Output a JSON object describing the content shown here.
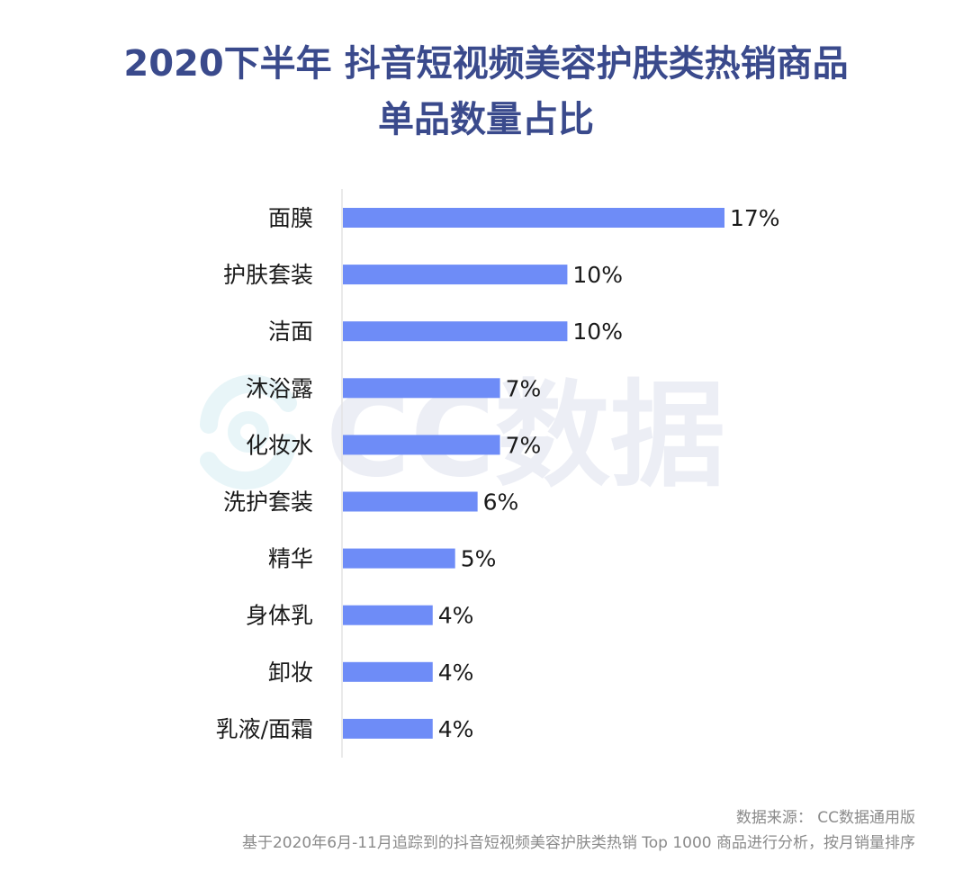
{
  "title": {
    "line1": "2020下半年 抖音短视频美容护肤类热销商品",
    "line2": "单品数量占比"
  },
  "watermark": {
    "text": "CC数据",
    "icon": "cc-logo-icon"
  },
  "footer": {
    "source": "数据来源： CC数据通用版",
    "note": "基于2020年6月-11月追踪到的抖音短视频美容护肤类热销 Top 1000 商品进行分析，按月销量排序"
  },
  "colors": {
    "bar": "#6e8cf7",
    "title": "#3a4a8c"
  },
  "chart_data": {
    "type": "bar",
    "orientation": "horizontal",
    "categories": [
      "面膜",
      "护肤套装",
      "洁面",
      "沐浴露",
      "化妆水",
      "洗护套装",
      "精华",
      "身体乳",
      "卸妆",
      "乳液/面霜"
    ],
    "values": [
      17,
      10,
      10,
      7,
      7,
      6,
      5,
      4,
      4,
      4
    ],
    "value_labels": [
      "17%",
      "10%",
      "10%",
      "7%",
      "7%",
      "6%",
      "5%",
      "4%",
      "4%",
      "4%"
    ],
    "unit": "%",
    "xlim": [
      0,
      17
    ],
    "grid": false,
    "legend": "none"
  }
}
